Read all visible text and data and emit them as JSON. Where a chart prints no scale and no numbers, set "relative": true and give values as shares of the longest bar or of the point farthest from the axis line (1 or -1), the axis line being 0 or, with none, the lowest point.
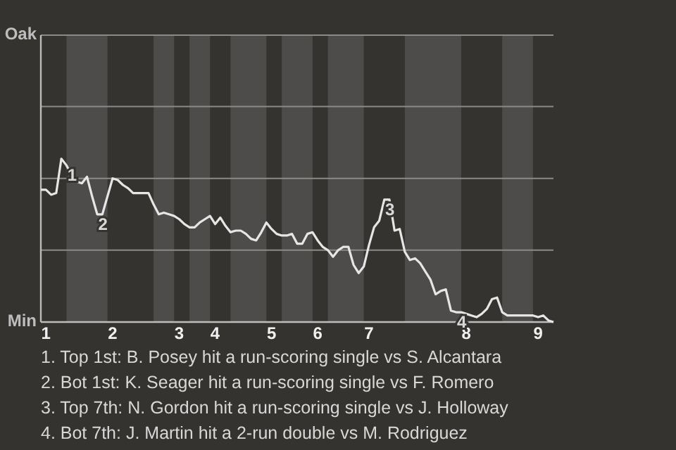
{
  "chart_data": {
    "type": "line",
    "relative": true,
    "categories": [
      null,
      "1",
      null,
      null,
      null,
      null,
      null,
      null,
      null,
      null,
      null,
      null,
      null,
      null,
      "2",
      null,
      null,
      null,
      null,
      null,
      null,
      null,
      null,
      null,
      null,
      null,
      null,
      "3",
      null,
      null,
      null,
      null,
      null,
      null,
      "4",
      null,
      null,
      null,
      null,
      null,
      null,
      null,
      null,
      null,
      null,
      "5",
      null,
      null,
      null,
      null,
      null,
      null,
      null,
      null,
      "6",
      null,
      null,
      null,
      null,
      null,
      null,
      null,
      null,
      null,
      "7",
      null,
      null,
      null,
      null,
      null,
      null,
      null,
      null,
      null,
      null,
      null,
      null,
      null,
      null,
      null,
      null,
      null,
      null,
      "8",
      null,
      null,
      null,
      null,
      null,
      null,
      null,
      null,
      null,
      null,
      null,
      null,
      null,
      "9",
      null,
      null,
      null
    ],
    "series": [
      {
        "color": "#e6e6e6",
        "values": [
          0.81,
          0.81,
          0.78,
          0.79,
          1,
          0.96,
          0.9,
          0.86,
          0.85,
          0.89,
          0.77,
          0.66,
          0.66,
          0.77,
          0.88,
          0.87,
          0.84,
          0.82,
          0.79,
          0.79,
          0.79,
          0.79,
          0.72,
          0.66,
          0.67,
          0.66,
          0.65,
          0.63,
          0.6,
          0.58,
          0.58,
          0.61,
          0.63,
          0.65,
          0.6,
          0.64,
          0.59,
          0.55,
          0.56,
          0.56,
          0.54,
          0.51,
          0.5,
          0.55,
          0.61,
          0.57,
          0.54,
          0.53,
          0.53,
          0.54,
          0.48,
          0.48,
          0.54,
          0.55,
          0.5,
          0.46,
          0.44,
          0.4,
          0.44,
          0.46,
          0.46,
          0.35,
          0.3,
          0.34,
          0.47,
          0.58,
          0.62,
          0.75,
          0.75,
          0.56,
          0.57,
          0.43,
          0.38,
          0.39,
          0.36,
          0.31,
          0.26,
          0.17,
          0.19,
          0.2,
          0.07,
          0.06,
          0.06,
          0.05,
          0.04,
          0.03,
          0.05,
          0.08,
          0.14,
          0.15,
          0.06,
          0.04,
          0.04,
          0.04,
          0.04,
          0.04,
          0.04,
          0.03,
          0.04,
          0.01,
          0
        ],
        "name": null
      }
    ],
    "marker": "none",
    "line_style": "solid",
    "ref_lines": [
      {
        "axis": "y",
        "value": 0.44,
        "color": "#8a8a88"
      },
      {
        "axis": "y",
        "value": 0.88,
        "color": "#8a8a88"
      },
      {
        "axis": "y",
        "value": 1.32,
        "color": "#8a8a88"
      }
    ],
    "annotations": [
      "Oak",
      "Min",
      {
        "text": "1",
        "y": 0.96
      },
      {
        "text": "2",
        "y": 0.66
      },
      {
        "text": "3",
        "y": 0.75
      },
      {
        "text": "4",
        "y": 0.06
      },
      "1. Top 1st: B. Posey hit a run-scoring single vs S. Alcantara",
      "2. Bot 1st: K. Seager hit a run-scoring single vs F. Romero",
      "3. Top 7th: N. Gordon hit a run-scoring single vs J. Holloway",
      "4. Bot 7th: J. Martin hit a 2-run double vs M. Rodriguez"
    ]
  }
}
